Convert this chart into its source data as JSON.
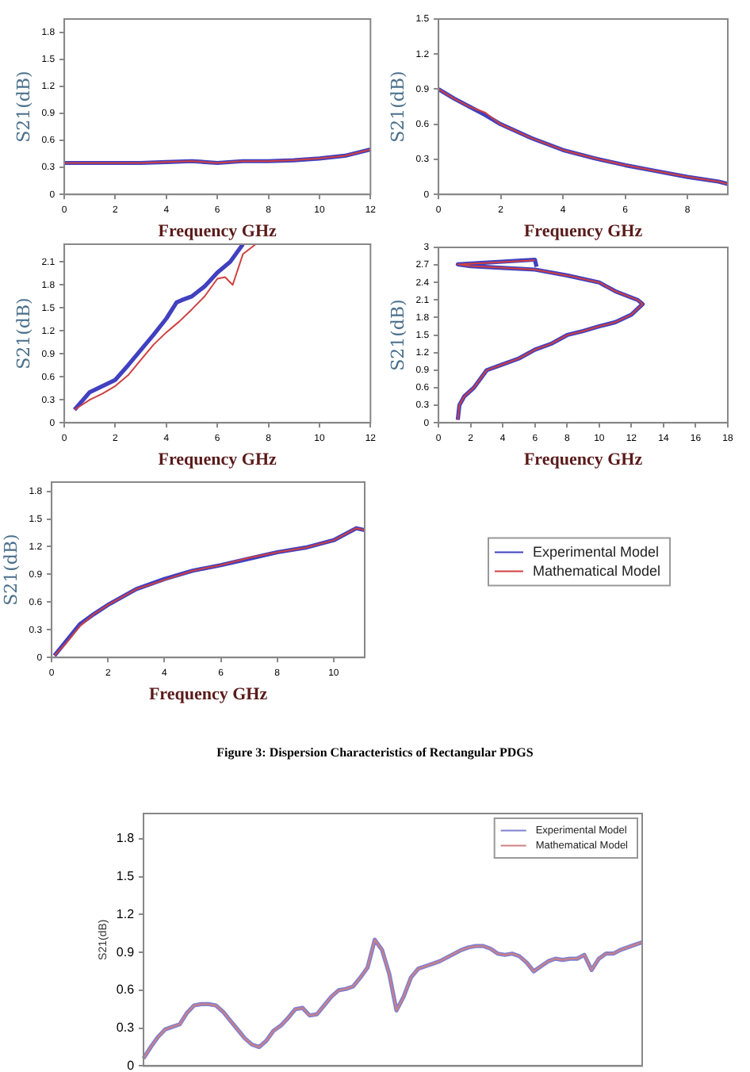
{
  "chart_data": [
    {
      "type": "line",
      "xlabel": "Frequency GHz",
      "ylabel": "S21(dB)",
      "xlim": [
        0,
        12
      ],
      "xticks": [
        0,
        2,
        4,
        6,
        8,
        10,
        12
      ],
      "ylim": [
        0,
        1.95
      ],
      "yticks": [
        0,
        0.3,
        0.6,
        0.9,
        1.2,
        1.5,
        1.8
      ],
      "series": [
        {
          "color": "#4040c0",
          "x": [
            0,
            1,
            2,
            3,
            4,
            5,
            6,
            7,
            8,
            9,
            10,
            11,
            12
          ],
          "values": [
            0.35,
            0.35,
            0.35,
            0.35,
            0.36,
            0.37,
            0.35,
            0.37,
            0.37,
            0.38,
            0.4,
            0.43,
            0.5
          ]
        },
        {
          "color": "#d04040",
          "x": [
            0,
            1,
            2,
            3,
            4,
            5,
            6,
            7,
            8,
            9,
            10,
            11,
            12
          ],
          "values": [
            0.35,
            0.35,
            0.35,
            0.35,
            0.36,
            0.37,
            0.35,
            0.37,
            0.37,
            0.38,
            0.4,
            0.43,
            0.5
          ]
        }
      ]
    },
    {
      "type": "line",
      "xlabel": "Frequency GHz",
      "ylabel": "S21(dB)",
      "xlim": [
        0,
        9.3
      ],
      "xticks": [
        0,
        2,
        4,
        6,
        8
      ],
      "ylim": [
        0,
        1.5
      ],
      "yticks": [
        0,
        0.3,
        0.6,
        0.9,
        1.2,
        1.5
      ],
      "series": [
        {
          "color": "#4040c0",
          "x": [
            0,
            0.5,
            1,
            1.5,
            2,
            3,
            4,
            5,
            6,
            7,
            8,
            9,
            9.3
          ],
          "values": [
            0.9,
            0.82,
            0.75,
            0.68,
            0.6,
            0.48,
            0.38,
            0.31,
            0.25,
            0.2,
            0.15,
            0.11,
            0.09
          ]
        },
        {
          "color": "#d04040",
          "x": [
            0,
            0.5,
            1,
            1.5,
            2,
            3,
            4,
            5,
            6,
            7,
            8,
            9,
            9.3
          ],
          "values": [
            0.9,
            0.82,
            0.75,
            0.7,
            0.6,
            0.48,
            0.38,
            0.31,
            0.25,
            0.2,
            0.15,
            0.11,
            0.09
          ]
        }
      ]
    },
    {
      "type": "line",
      "xlabel": "Frequency GHz",
      "ylabel": "S21(dB)",
      "xlim": [
        0,
        12
      ],
      "xticks": [
        0,
        2,
        4,
        6,
        8,
        10,
        12
      ],
      "ylim": [
        0,
        2.33
      ],
      "yticks": [
        0,
        0.3,
        0.6,
        0.9,
        1.2,
        1.5,
        1.8,
        2.1
      ],
      "series": [
        {
          "color": "#4040c0",
          "x": [
            0.4,
            1,
            1.5,
            2,
            2.5,
            3,
            3.5,
            4,
            4.4,
            4.6,
            5,
            5.5,
            6,
            6.5,
            7
          ],
          "values": [
            0.17,
            0.4,
            0.48,
            0.56,
            0.75,
            0.95,
            1.15,
            1.36,
            1.57,
            1.6,
            1.65,
            1.78,
            1.96,
            2.1,
            2.33
          ]
        },
        {
          "color": "#d04040",
          "x": [
            0.4,
            1,
            1.5,
            2,
            2.5,
            3,
            3.5,
            4,
            4.5,
            5,
            5.5,
            6,
            6.3,
            6.6,
            7,
            7.5
          ],
          "values": [
            0.17,
            0.3,
            0.38,
            0.48,
            0.62,
            0.82,
            1.02,
            1.18,
            1.32,
            1.48,
            1.65,
            1.88,
            1.9,
            1.8,
            2.2,
            2.33
          ]
        }
      ]
    },
    {
      "type": "line",
      "xlabel": "Frequency GHz",
      "ylabel": "S21(dB)",
      "xlim": [
        0,
        18
      ],
      "xticks": [
        0,
        2,
        4,
        6,
        8,
        10,
        12,
        14,
        16,
        18
      ],
      "ylim": [
        0,
        3
      ],
      "yticks": [
        0,
        0.3,
        0.6,
        0.9,
        1.2,
        1.5,
        1.8,
        2.1,
        2.4,
        2.7,
        3
      ],
      "series": [
        {
          "color": "#4040c0",
          "x": [
            1.2,
            1.3,
            1.6,
            2.2,
            3,
            4,
            5,
            6,
            7,
            8,
            9,
            10,
            11,
            12,
            12.7,
            12.4,
            11,
            10,
            8,
            6,
            4,
            2,
            1.2,
            6,
            6.1
          ],
          "values": [
            0.05,
            0.3,
            0.45,
            0.6,
            0.9,
            1,
            1.1,
            1.25,
            1.35,
            1.5,
            1.57,
            1.65,
            1.72,
            1.85,
            2.03,
            2.1,
            2.25,
            2.4,
            2.52,
            2.62,
            2.65,
            2.68,
            2.71,
            2.79,
            2.67
          ]
        },
        {
          "color": "#d04040",
          "x": [
            1.2,
            1.3,
            1.6,
            2.2,
            3,
            4,
            5,
            6,
            7,
            8,
            9,
            10,
            11,
            12,
            12.7,
            12.4,
            11,
            10,
            8,
            6,
            4,
            2,
            1.2,
            6
          ],
          "values": [
            0.05,
            0.3,
            0.45,
            0.6,
            0.9,
            1,
            1.1,
            1.25,
            1.35,
            1.5,
            1.57,
            1.65,
            1.72,
            1.85,
            2.03,
            2.1,
            2.25,
            2.4,
            2.52,
            2.62,
            2.65,
            2.68,
            2.71,
            2.78
          ]
        }
      ]
    },
    {
      "type": "line",
      "xlabel": "Frequency GHz",
      "ylabel": "S21(dB)",
      "xlim": [
        0,
        11.1
      ],
      "xticks": [
        0,
        2,
        4,
        6,
        8,
        10
      ],
      "ylim": [
        0,
        1.9
      ],
      "yticks": [
        0,
        0.3,
        0.6,
        0.9,
        1.2,
        1.5,
        1.8
      ],
      "legend": "right",
      "annotations": [
        "Figure 3: Dispersion Characteristics of Rectangular PDGS"
      ],
      "series": [
        {
          "name": "Experimental Model",
          "color": "#4040c0",
          "x": [
            0.1,
            0.5,
            1,
            1.5,
            2,
            3,
            4,
            5,
            6,
            7,
            8,
            9,
            10,
            10.8,
            11.1
          ],
          "values": [
            0.02,
            0.17,
            0.36,
            0.47,
            0.57,
            0.74,
            0.85,
            0.94,
            1,
            1.07,
            1.14,
            1.19,
            1.27,
            1.4,
            1.38
          ]
        },
        {
          "name": "Mathematical Model",
          "color": "#d04040",
          "x": [
            0.1,
            0.5,
            1,
            1.5,
            2,
            3,
            4,
            5,
            6,
            7,
            8,
            9,
            10,
            10.8,
            11.1
          ],
          "values": [
            0.02,
            0.15,
            0.34,
            0.47,
            0.57,
            0.74,
            0.84,
            0.94,
            1,
            1.08,
            1.14,
            1.19,
            1.27,
            1.4,
            1.38
          ]
        }
      ]
    },
    {
      "type": "line",
      "ylabel": "S21(dB)",
      "categories": [
        null,
        null,
        null,
        null,
        null,
        null,
        null,
        null,
        null,
        null,
        null,
        null,
        null,
        null,
        null,
        null,
        null,
        null,
        null,
        null,
        null,
        null,
        null,
        null,
        null,
        null,
        null,
        null,
        null,
        null,
        null,
        null,
        null,
        null,
        null,
        null,
        null,
        null,
        null,
        null,
        null,
        null,
        null,
        null,
        null,
        null,
        null,
        null,
        null,
        null,
        null,
        null,
        null,
        null,
        null,
        null,
        null,
        null,
        null,
        null,
        null,
        null,
        null,
        null,
        null,
        null,
        null,
        null,
        null,
        null
      ],
      "ylim": [
        0,
        2
      ],
      "yticks": [
        0,
        0.3,
        0.6,
        0.9,
        1.2,
        1.5,
        1.8
      ],
      "tick_labels": "y",
      "legend": "top right",
      "series": [
        {
          "name": "Experimental Model",
          "color": "#8080d0",
          "values": [
            0.06,
            0.15,
            0.23,
            0.29,
            0.31,
            0.33,
            0.42,
            0.48,
            0.49,
            0.49,
            0.48,
            0.43,
            0.36,
            0.29,
            0.22,
            0.17,
            0.15,
            0.2,
            0.28,
            0.32,
            0.38,
            0.45,
            0.46,
            0.4,
            0.41,
            0.48,
            0.55,
            0.6,
            0.61,
            0.63,
            0.7,
            0.78,
            1,
            0.92,
            0.73,
            0.44,
            0.55,
            0.7,
            0.77,
            0.79,
            0.81,
            0.83,
            0.86,
            0.89,
            0.92,
            0.94,
            0.95,
            0.95,
            0.93,
            0.89,
            0.88,
            0.89,
            0.87,
            0.82,
            0.75,
            0.79,
            0.83,
            0.85,
            0.84,
            0.85,
            0.85,
            0.88,
            0.76,
            0.85,
            0.89,
            0.89,
            0.92,
            0.94,
            0.96,
            0.98
          ]
        },
        {
          "name": "Mathematical Model",
          "color": "#d08080",
          "values": [
            0.06,
            0.15,
            0.23,
            0.29,
            0.31,
            0.33,
            0.42,
            0.48,
            0.49,
            0.49,
            0.48,
            0.43,
            0.36,
            0.29,
            0.22,
            0.17,
            0.15,
            0.2,
            0.28,
            0.32,
            0.38,
            0.45,
            0.46,
            0.4,
            0.41,
            0.48,
            0.55,
            0.6,
            0.61,
            0.63,
            0.7,
            0.78,
            1,
            0.92,
            0.73,
            0.44,
            0.55,
            0.7,
            0.77,
            0.79,
            0.81,
            0.83,
            0.86,
            0.89,
            0.92,
            0.94,
            0.95,
            0.95,
            0.93,
            0.89,
            0.88,
            0.89,
            0.87,
            0.82,
            0.75,
            0.79,
            0.83,
            0.85,
            0.84,
            0.85,
            0.85,
            0.88,
            0.76,
            0.85,
            0.89,
            0.89,
            0.92,
            0.94,
            0.96,
            0.98
          ]
        }
      ]
    }
  ]
}
